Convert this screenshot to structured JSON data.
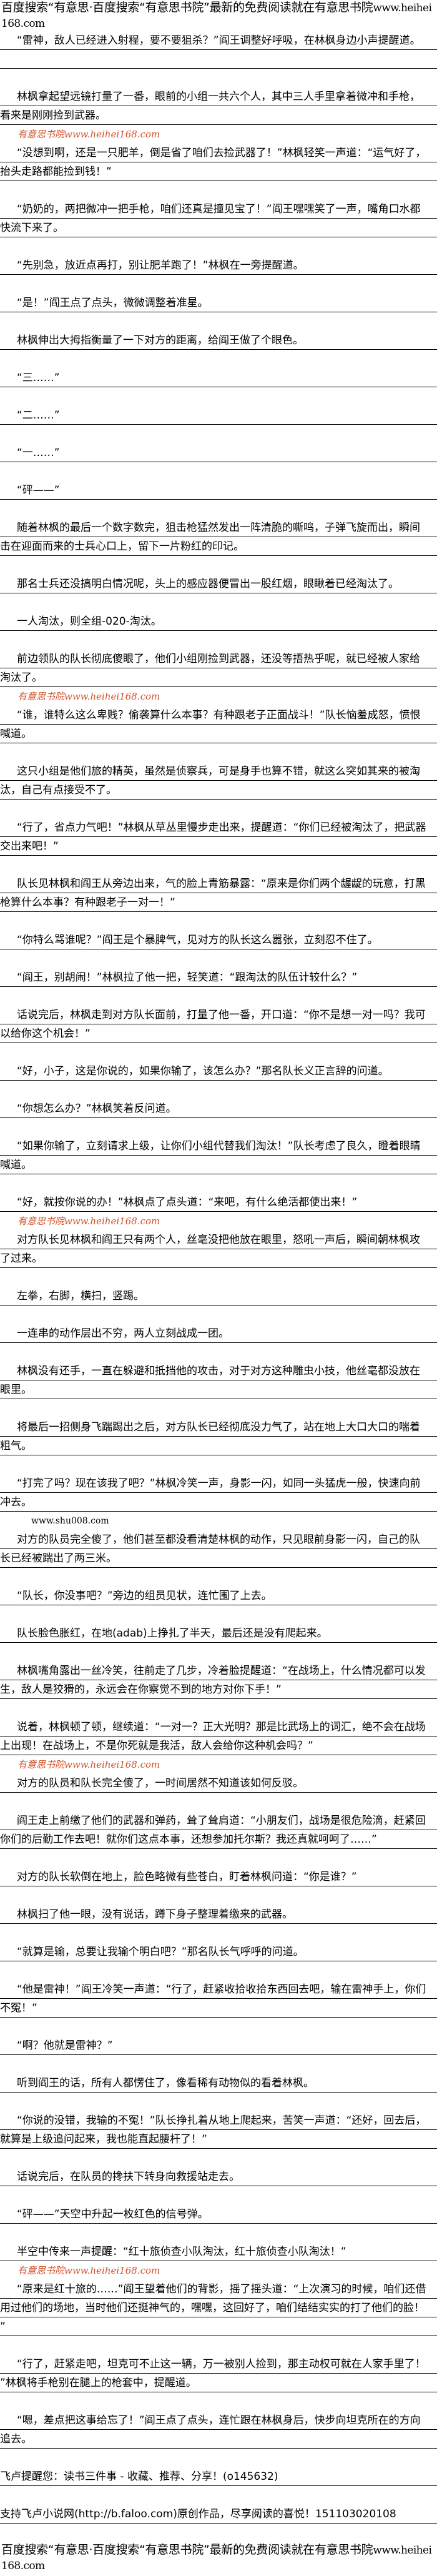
{
  "header": {
    "text": "百度搜索“有意思·百度搜索“有意思书院”最新的免费阅读就在有意思书院",
    "url": "www.heihei168.com"
  },
  "paragraphs": [
    "“雷神，敌人已经进入射程，要不要狙杀？”阎王调整好呼吸，在林枫身边小声提醒道。",
    "林枫拿起望远镜打量了一番，眼前的小组一共六个人，其中三人手里拿着微冲和手枪，看来是刚刚捡到武器。",
    "“没想到啊，还是一只肥羊，倒是省了咱们去捡武器了！”林枫轻笑一声道：“运气好了，抬头走路都能捡到钱！”",
    "“奶奶的，两把微冲一把手枪，咱们还真是撞见宝了！”阎王嘿嘿笑了一声，嘴角口水都快流下来了。",
    "“先别急，放近点再打，别让肥羊跑了！”林枫在一旁提醒道。",
    "“是！”阎王点了点头，微微调整着准星。",
    "林枫伸出大拇指衡量了一下对方的距离，给阎王做了个眼色。",
    "“三……”",
    "“二……”",
    "“一……”",
    "“砰——”",
    "随着林枫的最后一个数字数完，狙击枪猛然发出一阵清脆的嘶鸣，子弹飞旋而出，瞬间击在迎面而来的士兵心口上，留下一片粉红的印记。",
    "那名士兵还没搞明白情况呢，头上的感应器便冒出一股红烟，眼瞅着已经淘汰了。",
    "一人淘汰，则全组-020-淘汰。",
    "前边领队的队长彻底傻眼了，他们小组刚捡到武器，还没等捂热乎呢，就已经被人家给淘汰了。",
    "“谁，谁特么这么卑贱？偷袭算什么本事？有种跟老子正面战斗！”队长恼羞成怒，愤恨喊道。",
    "这只小组是他们旅的精英，虽然是侦察兵，可是身手也算不错，就这么突如其来的被淘汰，自己有点接受不了。",
    "“行了，省点力气吧！”林枫从草丛里慢步走出来，提醒道：“你们已经被淘汰了，把武器交出来吧！”",
    "队长见林枫和阎王从旁边出来，气的脸上青筋暴露：“原来是你们两个龌龊的玩意，打黑枪算什么本事？有种跟老子一对一！”",
    "“你特么骂谁呢？”阎王是个暴脾气，见对方的队长这么嚣张，立刻忍不住了。",
    "“阎王，别胡闹！”林枫拉了他一把，轻笑道：“跟淘汰的队伍计较什么？”",
    "话说完后，林枫走到对方队长面前，打量了他一番，开口道：“你不是想一对一吗？我可以给你这个机会！”",
    "“好，小子，这是你说的，如果你输了，该怎么办？”那名队长义正言辞的问道。",
    "“你想怎么办？”林枫笑着反问道。",
    "“如果你输了，立刻请求上级，让你们小组代替我们淘汰！”队长考虑了良久，瞪着眼睛喊道。",
    "“好，就按你说的办！”林枫点了点头道：“来吧，有什么绝活都使出来！”",
    "对方队长见林枫和阎王只有两个人，丝毫没把他放在眼里，怒吼一声后，瞬间朝林枫攻了过来。",
    "左拳，右脚，横扫，竖踢。",
    "一连串的动作层出不穷，两人立刻战成一团。",
    "林枫没有还手，一直在躲避和抵挡他的攻击，对于对方这种雕虫小技，他丝毫都没放在眼里。",
    "将最后一招侧身飞踹踢出之后，对方队长已经彻底没力气了，站在地上大口大口的喘着粗气。",
    "“打完了吗？现在该我了吧？”林枫冷笑一声，身影一闪，如同一头猛虎一般，快速向前冲去。",
    "对方的队员完全傻了，他们甚至都没看清楚林枫的动作，只见眼前身影一闪，自己的队长已经被踹出了两三米。",
    "“队长，你没事吧？”旁边的组员见状，连忙围了上去。",
    "队长脸色胀红，在地(adab)上挣扎了半天，最后还是没有爬起来。",
    "林枫嘴角露出一丝冷笑，往前走了几步，冷着脸提醒道：“在战场上，什么情况都可以发生，敌人是狡猾的，永远会在你察觉不到的地方对你下手！”",
    "说着，林枫顿了顿，继续道：“一对一？正大光明？那是比武场上的词汇，绝不会在战场上出现！在战场上，不是你死就是我活，敌人会给你这种机会吗？”",
    "对方的队员和队长完全傻了，一时间居然不知道该如何反驳。",
    "阎王走上前缴了他们的武器和弹药，耸了耸肩道：“小朋友们，战场是很危险滴，赶紧回你们的后勤工作去吧！就你们这点本事，还想参加托尔斯？我还真就呵呵了……”",
    "对方的队长软倒在地上，脸色略微有些苍白，盯着林枫问道：“你是谁？”",
    "林枫扫了他一眼，没有说话，蹲下身子整理着缴来的武器。",
    "“就算是输，总要让我输个明白吧？”那名队长气呼呼的问道。",
    "“他是雷神！”阎王冷笑一声道：“行了，赶紧收拾收拾东西回去吧，输在雷神手上，你们不冤！”",
    "“啊？他就是雷神？”",
    "听到阎王的话，所有人都愣住了，像看稀有动物似的看着林枫。",
    "“你说的没错，我输的不冤！”队长挣扎着从地上爬起来，苦笑一声道：“还好，回去后，就算是上级追问起来，我也能直起腰杆了！”",
    "话说完后，在队员的搀扶下转身向救援站走去。",
    "“砰——”天空中升起一枚红色的信号弹。",
    "半空中传来一声提醒：“红十旅侦查小队淘汰，红十旅侦查小队淘汰！”",
    "“原来是红十旅的……”阎王望着他们的背影，摇了摇头道：“上次演习的时候，咱们还借用过他们的场地，当时他们还挺神气的，嘿嘿，这回好了，咱们结结实实的打了他们的脸！”",
    "“行了，赶紧走吧，坦克可不止这一辆，万一被别人捡到，那主动权可就在人家手里了！”林枫将手枪别在腿上的枪套中，提醒道。",
    "“嗯，差点把这事给忘了！”阎王点了点头，连忙跟在林枫身后，快步向坦克所在的方向追去。"
  ],
  "inline_site": "www.shu008.com",
  "notices": [
    "飞卢提醒您：读书三件事 - 收藏、推荐、分享！(o145632)",
    "支持飞卢小说网(http://b.faloo.com)原创作品，尽享阅读的喜悦！151103020108"
  ],
  "footer": {
    "text": "百度搜索“有意思·百度搜索“有意思书院”最新的免费阅读就在有意思书院",
    "url": "www.heihei168.com"
  },
  "watermark": {
    "text": "有意思书院www.heihei168.com",
    "color": "#d2502a"
  }
}
